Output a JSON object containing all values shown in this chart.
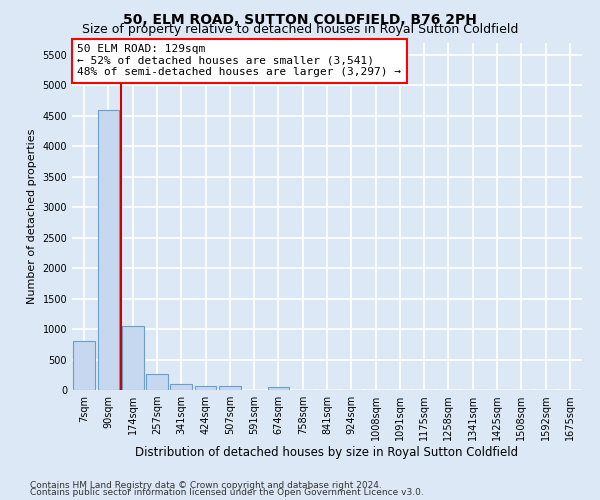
{
  "title": "50, ELM ROAD, SUTTON COLDFIELD, B76 2PH",
  "subtitle": "Size of property relative to detached houses in Royal Sutton Coldfield",
  "xlabel": "Distribution of detached houses by size in Royal Sutton Coldfield",
  "ylabel": "Number of detached properties",
  "footnote1": "Contains HM Land Registry data © Crown copyright and database right 2024.",
  "footnote2": "Contains public sector information licensed under the Open Government Licence v3.0.",
  "bar_labels": [
    "7sqm",
    "90sqm",
    "174sqm",
    "257sqm",
    "341sqm",
    "424sqm",
    "507sqm",
    "591sqm",
    "674sqm",
    "758sqm",
    "841sqm",
    "924sqm",
    "1008sqm",
    "1091sqm",
    "1175sqm",
    "1258sqm",
    "1341sqm",
    "1425sqm",
    "1508sqm",
    "1592sqm",
    "1675sqm"
  ],
  "bar_values": [
    800,
    4600,
    1050,
    270,
    100,
    70,
    60,
    0,
    50,
    0,
    0,
    0,
    0,
    0,
    0,
    0,
    0,
    0,
    0,
    0,
    0
  ],
  "bar_color": "#c5d8ef",
  "bar_edge_color": "#6b9fc8",
  "vline_x": 1.5,
  "vline_color": "#cc0000",
  "ylim_max": 5700,
  "yticks": [
    0,
    500,
    1000,
    1500,
    2000,
    2500,
    3000,
    3500,
    4000,
    4500,
    5000,
    5500
  ],
  "annotation_title": "50 ELM ROAD: 129sqm",
  "annotation_line1": "← 52% of detached houses are smaller (3,541)",
  "annotation_line2": "48% of semi-detached houses are larger (3,297) →",
  "bg_color": "#dce8f5",
  "plot_bg_color": "#dce8f5",
  "grid_color": "#ffffff",
  "title_fontsize": 10,
  "subtitle_fontsize": 9,
  "ann_fontsize": 8,
  "tick_fontsize": 7,
  "ylabel_fontsize": 8,
  "xlabel_fontsize": 8.5,
  "footnote_fontsize": 6.5
}
